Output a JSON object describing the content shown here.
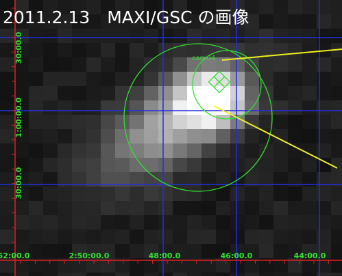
{
  "title": "2011.2.13　MAXI/GSC の画像",
  "source_label": "cam04",
  "y_labels": [
    "30:00.0",
    "1:00:00.0",
    "30:00.0"
  ],
  "x_labels": [
    "52:00.0",
    "2:50:00.0",
    "48:00.0",
    "46:00.0",
    "44:00.0"
  ]
}
